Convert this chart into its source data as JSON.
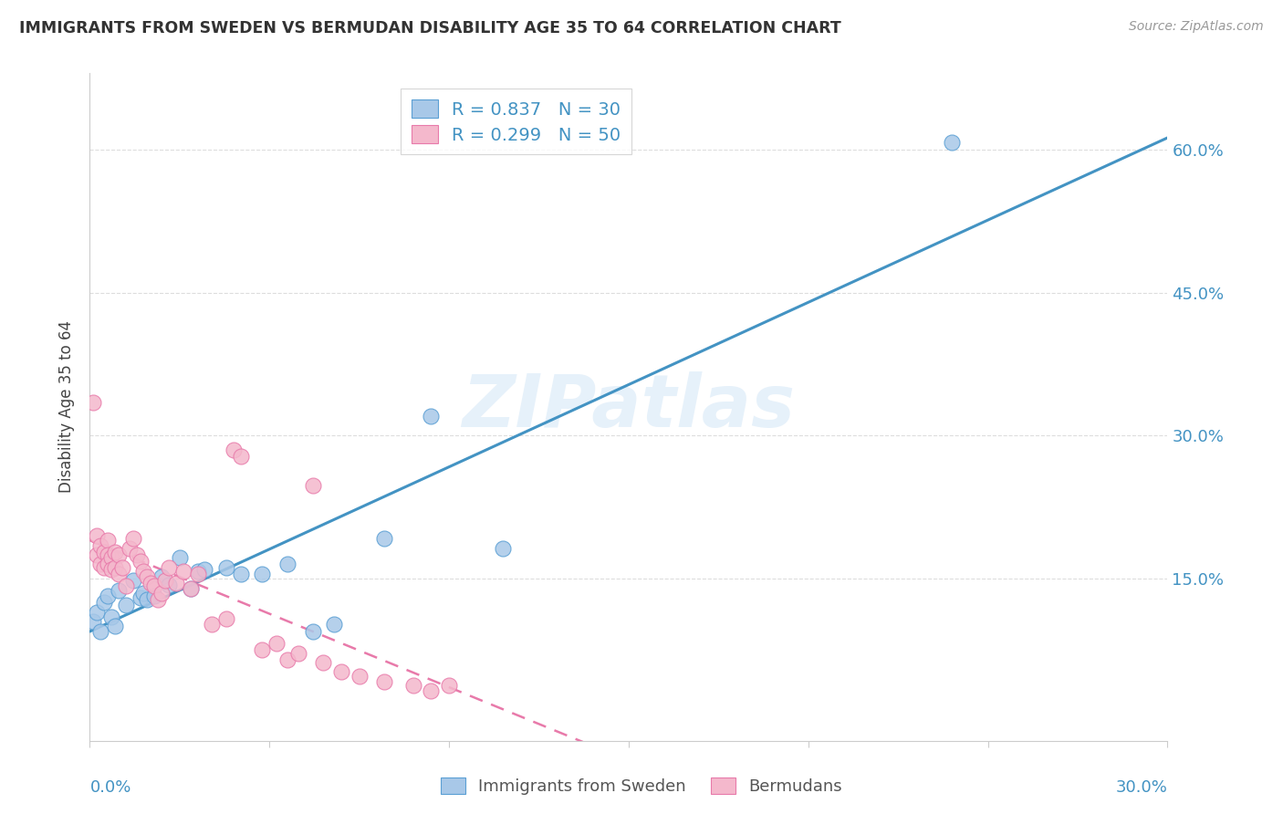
{
  "title": "IMMIGRANTS FROM SWEDEN VS BERMUDAN DISABILITY AGE 35 TO 64 CORRELATION CHART",
  "source": "Source: ZipAtlas.com",
  "ylabel": "Disability Age 35 to 64",
  "ytick_labels": [
    "15.0%",
    "30.0%",
    "45.0%",
    "60.0%"
  ],
  "ytick_values": [
    0.15,
    0.3,
    0.45,
    0.6
  ],
  "xlim": [
    0.0,
    0.3
  ],
  "ylim": [
    -0.02,
    0.68
  ],
  "sweden_color": "#a8c8e8",
  "bermuda_color": "#f4b8cc",
  "sweden_edge_color": "#5a9fd4",
  "bermuda_edge_color": "#e87aaa",
  "sweden_line_color": "#4393c3",
  "bermuda_line_color": "#f4a0b5",
  "watermark": "ZIPatlas",
  "sweden_points_x": [
    0.001,
    0.002,
    0.003,
    0.004,
    0.005,
    0.006,
    0.007,
    0.008,
    0.01,
    0.012,
    0.014,
    0.015,
    0.016,
    0.018,
    0.02,
    0.022,
    0.025,
    0.028,
    0.03,
    0.032,
    0.038,
    0.042,
    0.048,
    0.055,
    0.062,
    0.068,
    0.082,
    0.095,
    0.115,
    0.24
  ],
  "sweden_points_y": [
    0.105,
    0.115,
    0.095,
    0.125,
    0.132,
    0.11,
    0.1,
    0.138,
    0.122,
    0.148,
    0.13,
    0.135,
    0.128,
    0.132,
    0.152,
    0.143,
    0.172,
    0.14,
    0.158,
    0.16,
    0.162,
    0.155,
    0.155,
    0.165,
    0.095,
    0.102,
    0.192,
    0.32,
    0.182,
    0.608
  ],
  "bermuda_points_x": [
    0.001,
    0.002,
    0.002,
    0.003,
    0.003,
    0.004,
    0.004,
    0.005,
    0.005,
    0.005,
    0.006,
    0.006,
    0.007,
    0.007,
    0.008,
    0.008,
    0.009,
    0.01,
    0.011,
    0.012,
    0.013,
    0.014,
    0.015,
    0.016,
    0.017,
    0.018,
    0.019,
    0.02,
    0.021,
    0.022,
    0.024,
    0.026,
    0.028,
    0.03,
    0.034,
    0.038,
    0.04,
    0.042,
    0.048,
    0.052,
    0.055,
    0.058,
    0.062,
    0.065,
    0.07,
    0.075,
    0.082,
    0.09,
    0.095,
    0.1
  ],
  "bermuda_points_y": [
    0.335,
    0.195,
    0.175,
    0.185,
    0.165,
    0.178,
    0.162,
    0.19,
    0.175,
    0.165,
    0.172,
    0.16,
    0.178,
    0.162,
    0.175,
    0.155,
    0.162,
    0.142,
    0.182,
    0.192,
    0.175,
    0.168,
    0.158,
    0.152,
    0.145,
    0.142,
    0.128,
    0.135,
    0.148,
    0.162,
    0.145,
    0.158,
    0.14,
    0.155,
    0.102,
    0.108,
    0.285,
    0.278,
    0.075,
    0.082,
    0.065,
    0.072,
    0.248,
    0.062,
    0.052,
    0.048,
    0.042,
    0.038,
    0.032,
    0.038
  ],
  "legend1_label_r": "R = 0.837",
  "legend1_label_n": "N = 30",
  "legend2_label_r": "R = 0.299",
  "legend2_label_n": "N = 50",
  "bottom_legend_sweden": "Immigrants from Sweden",
  "bottom_legend_bermuda": "Bermudans",
  "title_color": "#333333",
  "source_color": "#999999",
  "tick_color": "#4393c3",
  "grid_color": "#dddddd",
  "axis_color": "#cccccc"
}
